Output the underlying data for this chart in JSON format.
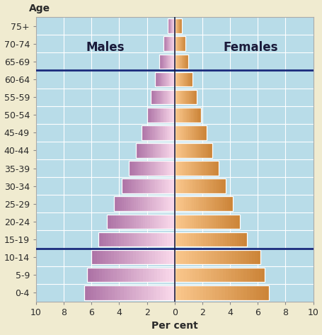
{
  "age_groups": [
    "0-4",
    "5-9",
    "10-14",
    "15-19",
    "20-24",
    "25-29",
    "30-34",
    "35-39",
    "40-44",
    "45-49",
    "50-54",
    "55-59",
    "60-64",
    "65-69",
    "70-74",
    "75+"
  ],
  "males": [
    6.5,
    6.3,
    6.0,
    5.5,
    4.9,
    4.4,
    3.8,
    3.3,
    2.8,
    2.4,
    2.0,
    1.7,
    1.4,
    1.1,
    0.8,
    0.5
  ],
  "females": [
    6.8,
    6.5,
    6.2,
    5.2,
    4.7,
    4.2,
    3.7,
    3.2,
    2.7,
    2.3,
    1.9,
    1.6,
    1.3,
    1.0,
    0.8,
    0.5
  ],
  "bg_color": "#b8dce8",
  "outer_bg": "#f0ebd0",
  "hline_color": "#1a2a7c",
  "vline_color": "#1a1a3a",
  "grid_color": "#ffffff",
  "xlabel": "Per cent",
  "ylabel": "Age",
  "males_label": "Males",
  "females_label": "Females",
  "xlim": 10,
  "hlines_y": [
    2.5,
    12.5
  ],
  "label_fontsize": 10,
  "tick_fontsize": 9,
  "bar_height": 0.82,
  "male_inner": [
    0.98,
    0.85,
    0.92
  ],
  "male_outer": [
    0.68,
    0.45,
    0.65
  ],
  "female_inner": [
    0.98,
    0.78,
    0.55
  ],
  "female_outer": [
    0.8,
    0.52,
    0.22
  ]
}
